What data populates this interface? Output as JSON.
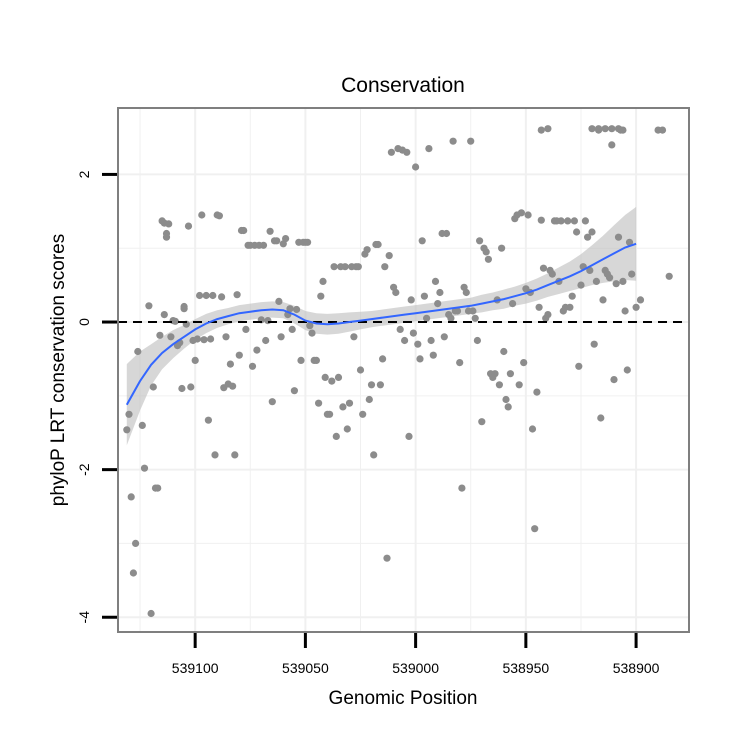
{
  "chart_data": {
    "type": "scatter",
    "title": "Conservation",
    "xlabel": "Genomic Position",
    "ylabel": "phyloP LRT conservation scores",
    "x_reversed": true,
    "xlim": [
      539135,
      538876
    ],
    "ylim": [
      -4.2,
      2.9
    ],
    "x_ticks": [
      539100,
      539050,
      539000,
      538950,
      538900
    ],
    "x_tick_labels": [
      "539100",
      "539050",
      "539000",
      "538950",
      "538900"
    ],
    "y_ticks": [
      -4,
      -2,
      0,
      2
    ],
    "y_tick_labels": [
      "-4",
      "-2",
      "0",
      "2"
    ],
    "grid": true,
    "reference_line": {
      "y": 0,
      "style": "dashed"
    },
    "colors": {
      "points": "#8c8c8c",
      "smooth_line": "#3366ff",
      "ribbon": "#bdbdbd",
      "frame": "#7f7f7f"
    },
    "points": [
      [
        539131,
        -1.46
      ],
      [
        539130,
        -1.25
      ],
      [
        539129,
        -2.37
      ],
      [
        539128,
        -3.4
      ],
      [
        539127,
        -3.0
      ],
      [
        539126,
        -0.4
      ],
      [
        539124,
        -1.4
      ],
      [
        539123,
        -1.98
      ],
      [
        539121,
        0.22
      ],
      [
        539120,
        -3.95
      ],
      [
        539119,
        -0.88
      ],
      [
        539118,
        -2.25
      ],
      [
        539117,
        -2.25
      ],
      [
        539116,
        -0.18
      ],
      [
        539115,
        1.37
      ],
      [
        539114,
        1.34
      ],
      [
        539114,
        0.1
      ],
      [
        539113,
        1.15
      ],
      [
        539113,
        1.2
      ],
      [
        539112,
        1.33
      ],
      [
        539111,
        -0.2
      ],
      [
        539110,
        0.02
      ],
      [
        539109,
        0.01
      ],
      [
        539108,
        -0.32
      ],
      [
        539107,
        -0.28
      ],
      [
        539106,
        -0.9
      ],
      [
        539105,
        0.21
      ],
      [
        539105,
        0.18
      ],
      [
        539104,
        -0.03
      ],
      [
        539103,
        1.3
      ],
      [
        539102,
        -0.88
      ],
      [
        539101,
        -0.25
      ],
      [
        539100,
        -0.52
      ],
      [
        539099,
        -0.23
      ],
      [
        539098,
        0.36
      ],
      [
        539097,
        1.45
      ],
      [
        539096,
        -0.24
      ],
      [
        539095,
        0.36
      ],
      [
        539094,
        -1.33
      ],
      [
        539093,
        -0.23
      ],
      [
        539092,
        0.36
      ],
      [
        539091,
        -1.8
      ],
      [
        539090,
        1.45
      ],
      [
        539089,
        1.44
      ],
      [
        539088,
        0.34
      ],
      [
        539087,
        -0.89
      ],
      [
        539086,
        -0.2
      ],
      [
        539085,
        -0.84
      ],
      [
        539084,
        -0.57
      ],
      [
        539083,
        -0.87
      ],
      [
        539082,
        -1.8
      ],
      [
        539081,
        0.37
      ],
      [
        539080,
        -0.45
      ],
      [
        539079,
        1.24
      ],
      [
        539078,
        1.24
      ],
      [
        539077,
        -0.1
      ],
      [
        539076,
        1.04
      ],
      [
        539075,
        1.04
      ],
      [
        539074,
        -0.6
      ],
      [
        539073,
        1.04
      ],
      [
        539072,
        -0.38
      ],
      [
        539071,
        1.04
      ],
      [
        539070,
        0.03
      ],
      [
        539069,
        1.04
      ],
      [
        539068,
        -0.25
      ],
      [
        539067,
        0.02
      ],
      [
        539066,
        1.23
      ],
      [
        539065,
        -1.08
      ],
      [
        539064,
        1.1
      ],
      [
        539063,
        1.1
      ],
      [
        539062,
        0.28
      ],
      [
        539061,
        -0.2
      ],
      [
        539060,
        1.06
      ],
      [
        539059,
        1.13
      ],
      [
        539058,
        0.1
      ],
      [
        539057,
        0.18
      ],
      [
        539056,
        -0.1
      ],
      [
        539055,
        -0.93
      ],
      [
        539054,
        0.17
      ],
      [
        539053,
        1.08
      ],
      [
        539052,
        -0.52
      ],
      [
        539051,
        1.08
      ],
      [
        539050,
        1.08
      ],
      [
        539049,
        1.08
      ],
      [
        539048,
        -0.05
      ],
      [
        539047,
        -0.15
      ],
      [
        539046,
        -0.52
      ],
      [
        539045,
        -0.52
      ],
      [
        539044,
        -1.1
      ],
      [
        539043,
        0.35
      ],
      [
        539042,
        0.55
      ],
      [
        539041,
        -0.75
      ],
      [
        539040,
        -1.25
      ],
      [
        539039,
        -1.25
      ],
      [
        539038,
        -0.8
      ],
      [
        539037,
        0.75
      ],
      [
        539036,
        -1.55
      ],
      [
        539035,
        -0.75
      ],
      [
        539034,
        0.75
      ],
      [
        539033,
        -1.15
      ],
      [
        539032,
        0.75
      ],
      [
        539031,
        -1.45
      ],
      [
        539030,
        -1.1
      ],
      [
        539029,
        0.75
      ],
      [
        539028,
        -0.2
      ],
      [
        539027,
        0.75
      ],
      [
        539026,
        0.75
      ],
      [
        539025,
        -0.65
      ],
      [
        539024,
        -1.25
      ],
      [
        539023,
        0.92
      ],
      [
        539022,
        0.98
      ],
      [
        539021,
        -1.05
      ],
      [
        539020,
        -0.85
      ],
      [
        539019,
        -1.8
      ],
      [
        539018,
        1.05
      ],
      [
        539017,
        1.05
      ],
      [
        539016,
        -0.85
      ],
      [
        539015,
        -0.5
      ],
      [
        539014,
        0.75
      ],
      [
        539013,
        -3.2
      ],
      [
        539012,
        0.9
      ],
      [
        539011,
        2.3
      ],
      [
        539010,
        0.47
      ],
      [
        539009,
        0.4
      ],
      [
        539008,
        2.35
      ],
      [
        539007,
        -0.1
      ],
      [
        539006,
        2.33
      ],
      [
        539005,
        -0.25
      ],
      [
        539004,
        2.3
      ],
      [
        539003,
        -1.55
      ],
      [
        539002,
        0.3
      ],
      [
        539001,
        -0.15
      ],
      [
        539000,
        2.1
      ],
      [
        538999,
        -0.3
      ],
      [
        538998,
        -0.5
      ],
      [
        538997,
        1.1
      ],
      [
        538996,
        0.35
      ],
      [
        538995,
        0.05
      ],
      [
        538994,
        2.35
      ],
      [
        538993,
        -0.25
      ],
      [
        538992,
        -0.45
      ],
      [
        538991,
        0.55
      ],
      [
        538990,
        0.25
      ],
      [
        538989,
        0.4
      ],
      [
        538988,
        1.2
      ],
      [
        538987,
        -0.2
      ],
      [
        538986,
        1.2
      ],
      [
        538985,
        0.1
      ],
      [
        538984,
        0.05
      ],
      [
        538983,
        2.45
      ],
      [
        538982,
        0.15
      ],
      [
        538981,
        0.15
      ],
      [
        538980,
        -0.55
      ],
      [
        538979,
        -2.25
      ],
      [
        538978,
        0.47
      ],
      [
        538977,
        0.4
      ],
      [
        538976,
        0.15
      ],
      [
        538975,
        2.45
      ],
      [
        538974,
        0.15
      ],
      [
        538973,
        0.05
      ],
      [
        538972,
        -0.25
      ],
      [
        538971,
        1.1
      ],
      [
        538970,
        -1.35
      ],
      [
        538969,
        1.0
      ],
      [
        538968,
        0.95
      ],
      [
        538967,
        0.85
      ],
      [
        538966,
        -0.7
      ],
      [
        538965,
        -0.75
      ],
      [
        538964,
        -0.7
      ],
      [
        538963,
        0.3
      ],
      [
        538962,
        -0.85
      ],
      [
        538961,
        1.0
      ],
      [
        538960,
        -0.4
      ],
      [
        538959,
        -1.05
      ],
      [
        538958,
        -1.15
      ],
      [
        538957,
        -0.7
      ],
      [
        538956,
        0.25
      ],
      [
        538955,
        1.4
      ],
      [
        538954,
        1.45
      ],
      [
        538953,
        -0.85
      ],
      [
        538952,
        1.48
      ],
      [
        538951,
        -0.55
      ],
      [
        538950,
        0.45
      ],
      [
        538949,
        1.45
      ],
      [
        538948,
        0.4
      ],
      [
        538947,
        -1.45
      ],
      [
        538946,
        -2.8
      ],
      [
        538945,
        -0.95
      ],
      [
        538944,
        0.2
      ],
      [
        538943,
        1.38
      ],
      [
        538942,
        0.73
      ],
      [
        538941,
        0.05
      ],
      [
        538940,
        0.1
      ],
      [
        538939,
        0.7
      ],
      [
        538938,
        0.65
      ],
      [
        538937,
        1.37
      ],
      [
        538936,
        1.37
      ],
      [
        538935,
        0.55
      ],
      [
        538934,
        1.37
      ],
      [
        538933,
        0.15
      ],
      [
        538932,
        0.2
      ],
      [
        538931,
        1.37
      ],
      [
        538930,
        0.2
      ],
      [
        538929,
        0.35
      ],
      [
        538928,
        1.37
      ],
      [
        538927,
        1.22
      ],
      [
        538926,
        -0.6
      ],
      [
        538925,
        0.5
      ],
      [
        538924,
        0.75
      ],
      [
        538923,
        1.37
      ],
      [
        538922,
        1.15
      ],
      [
        538921,
        0.7
      ],
      [
        538920,
        1.22
      ],
      [
        538919,
        -0.3
      ],
      [
        538918,
        0.55
      ],
      [
        538917,
        2.6
      ],
      [
        538916,
        -1.3
      ],
      [
        538915,
        0.3
      ],
      [
        538914,
        0.7
      ],
      [
        538913,
        0.65
      ],
      [
        538912,
        0.6
      ],
      [
        538911,
        2.4
      ],
      [
        538910,
        -0.78
      ],
      [
        538909,
        0.52
      ],
      [
        538908,
        1.15
      ],
      [
        538907,
        2.6
      ],
      [
        538906,
        0.55
      ],
      [
        538905,
        0.15
      ],
      [
        538904,
        -0.65
      ],
      [
        538903,
        1.08
      ],
      [
        538902,
        0.65
      ],
      [
        538900,
        0.2
      ],
      [
        538898,
        0.3
      ],
      [
        538890,
        2.6
      ],
      [
        538888,
        2.6
      ],
      [
        538885,
        0.62
      ],
      [
        538920,
        2.62
      ],
      [
        538917,
        2.62
      ],
      [
        538914,
        2.62
      ],
      [
        538911,
        2.62
      ],
      [
        538908,
        2.62
      ],
      [
        538906,
        2.6
      ],
      [
        538943,
        2.6
      ],
      [
        538940,
        2.62
      ]
    ],
    "smooth_curve": [
      [
        539131,
        -1.12
      ],
      [
        539125,
        -0.8
      ],
      [
        539120,
        -0.58
      ],
      [
        539115,
        -0.42
      ],
      [
        539110,
        -0.3
      ],
      [
        539105,
        -0.2
      ],
      [
        539100,
        -0.1
      ],
      [
        539095,
        -0.02
      ],
      [
        539090,
        0.04
      ],
      [
        539085,
        0.08
      ],
      [
        539080,
        0.12
      ],
      [
        539075,
        0.14
      ],
      [
        539070,
        0.16
      ],
      [
        539065,
        0.17
      ],
      [
        539060,
        0.16
      ],
      [
        539055,
        0.1
      ],
      [
        539050,
        0.02
      ],
      [
        539045,
        -0.02
      ],
      [
        539040,
        -0.03
      ],
      [
        539035,
        -0.02
      ],
      [
        539030,
        0.0
      ],
      [
        539025,
        0.02
      ],
      [
        539020,
        0.04
      ],
      [
        539015,
        0.06
      ],
      [
        539010,
        0.08
      ],
      [
        539005,
        0.1
      ],
      [
        539000,
        0.12
      ],
      [
        538995,
        0.14
      ],
      [
        538990,
        0.16
      ],
      [
        538985,
        0.18
      ],
      [
        538980,
        0.2
      ],
      [
        538975,
        0.22
      ],
      [
        538970,
        0.25
      ],
      [
        538965,
        0.28
      ],
      [
        538960,
        0.31
      ],
      [
        538955,
        0.35
      ],
      [
        538950,
        0.39
      ],
      [
        538945,
        0.44
      ],
      [
        538940,
        0.5
      ],
      [
        538935,
        0.56
      ],
      [
        538930,
        0.62
      ],
      [
        538925,
        0.69
      ],
      [
        538920,
        0.77
      ],
      [
        538915,
        0.85
      ],
      [
        538910,
        0.93
      ],
      [
        538905,
        1.01
      ],
      [
        538900,
        1.06
      ]
    ],
    "ribbon_halfwidth": [
      0.55,
      0.4,
      0.28,
      0.22,
      0.19,
      0.16,
      0.14,
      0.13,
      0.12,
      0.11,
      0.11,
      0.11,
      0.11,
      0.11,
      0.11,
      0.12,
      0.13,
      0.14,
      0.14,
      0.14,
      0.13,
      0.12,
      0.11,
      0.11,
      0.11,
      0.11,
      0.11,
      0.11,
      0.11,
      0.11,
      0.11,
      0.11,
      0.12,
      0.12,
      0.13,
      0.13,
      0.14,
      0.15,
      0.16,
      0.18,
      0.2,
      0.23,
      0.27,
      0.32,
      0.38,
      0.44,
      0.5
    ]
  }
}
